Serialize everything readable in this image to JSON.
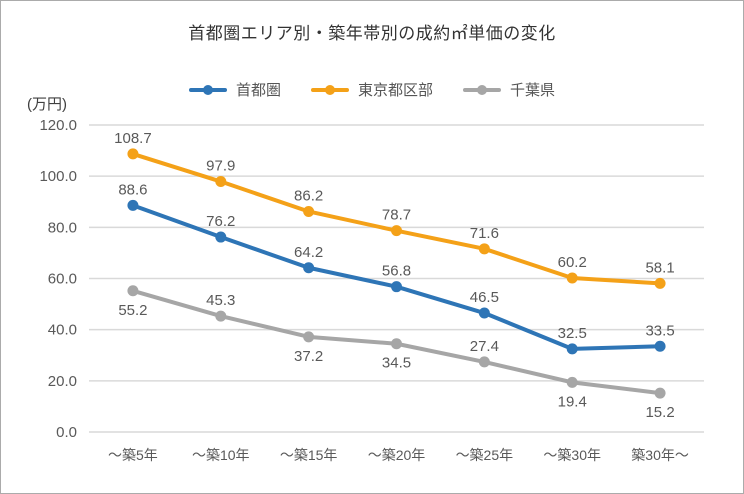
{
  "title": "首都圏エリア別・築年帯別の成約㎡単価の変化",
  "y_axis": {
    "unit_label": "(万円)",
    "ticks": [
      "120.0",
      "100.0",
      "80.0",
      "60.0",
      "40.0",
      "20.0",
      "0.0"
    ]
  },
  "colors": {
    "grid": "#d9d9d9",
    "tick_text": "#595959",
    "x_label_text": "#595959",
    "data_label_text": "#595959"
  },
  "chart_data": {
    "type": "line",
    "title": "首都圏エリア別・築年帯別の成約㎡単価の変化",
    "categories": [
      "〜築5年",
      "〜築10年",
      "〜築15年",
      "〜築20年",
      "〜築25年",
      "〜築30年",
      "築30年〜"
    ],
    "ylabel": "(万円)",
    "ylim": [
      0,
      120
    ],
    "y_tick_step": 20,
    "grid": true,
    "legend_position": "top",
    "series": [
      {
        "name": "首都圏",
        "color": "#2e75b6",
        "values": [
          88.6,
          76.2,
          64.2,
          56.8,
          46.5,
          32.5,
          33.5
        ],
        "label_positions": [
          "above",
          "above",
          "above",
          "above",
          "above",
          "above",
          "above"
        ]
      },
      {
        "name": "東京都区部",
        "color": "#f4a118",
        "values": [
          108.7,
          97.9,
          86.2,
          78.7,
          71.6,
          60.2,
          58.1
        ],
        "label_positions": [
          "above",
          "above",
          "above",
          "above",
          "above",
          "above",
          "above"
        ]
      },
      {
        "name": "千葉県",
        "color": "#a6a6a6",
        "values": [
          55.2,
          45.3,
          37.2,
          34.5,
          27.4,
          19.4,
          15.2
        ],
        "label_positions": [
          "below",
          "above",
          "below",
          "below",
          "above",
          "below",
          "below"
        ]
      }
    ]
  }
}
